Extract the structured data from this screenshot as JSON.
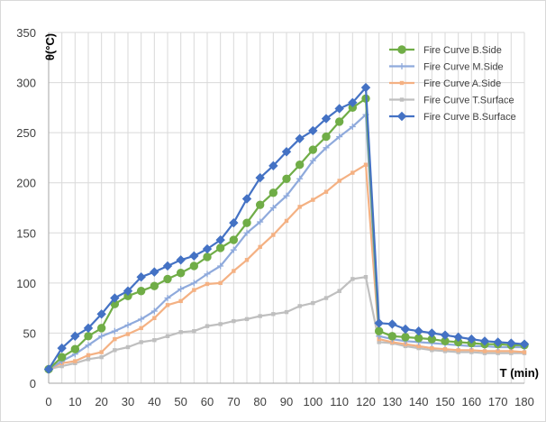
{
  "chart_data": {
    "type": "line",
    "ylabel": "θ(°C)",
    "xlabel": "T (min)",
    "xlim": [
      0,
      180
    ],
    "ylim": [
      0,
      350
    ],
    "x_ticks": [
      "0",
      "10",
      "20",
      "30",
      "40",
      "50",
      "60",
      "70",
      "80",
      "90",
      "100",
      "110",
      "120",
      "130",
      "140",
      "150",
      "160",
      "170",
      "180"
    ],
    "y_ticks": [
      "0",
      "50",
      "100",
      "150",
      "200",
      "250",
      "300",
      "350"
    ],
    "grid": "vertical and horizontal",
    "legend_position": "top-right",
    "series": [
      {
        "name": "Fire Curve B.Side",
        "color": "#70ad47",
        "marker": "circle",
        "points": [
          [
            0,
            14
          ],
          [
            5,
            26
          ],
          [
            10,
            34
          ],
          [
            15,
            47
          ],
          [
            20,
            55
          ],
          [
            25,
            79
          ],
          [
            30,
            87
          ],
          [
            35,
            92
          ],
          [
            40,
            97
          ],
          [
            45,
            104
          ],
          [
            50,
            110
          ],
          [
            55,
            117
          ],
          [
            60,
            126
          ],
          [
            65,
            135
          ],
          [
            70,
            143
          ],
          [
            75,
            160
          ],
          [
            80,
            178
          ],
          [
            85,
            190
          ],
          [
            90,
            204
          ],
          [
            95,
            218
          ],
          [
            100,
            233
          ],
          [
            105,
            246
          ],
          [
            110,
            261
          ],
          [
            115,
            275
          ],
          [
            120,
            284
          ],
          [
            125,
            52
          ],
          [
            130,
            47
          ],
          [
            135,
            46
          ],
          [
            140,
            45
          ],
          [
            145,
            44
          ],
          [
            150,
            42
          ],
          [
            155,
            41
          ],
          [
            160,
            40
          ],
          [
            165,
            39
          ],
          [
            170,
            39
          ],
          [
            175,
            38
          ],
          [
            180,
            38
          ]
        ]
      },
      {
        "name": "Fire Curve M.Side",
        "color": "#8faadc",
        "marker": "plus",
        "points": [
          [
            0,
            14
          ],
          [
            5,
            22
          ],
          [
            10,
            29
          ],
          [
            15,
            38
          ],
          [
            20,
            47
          ],
          [
            25,
            52
          ],
          [
            30,
            58
          ],
          [
            35,
            64
          ],
          [
            40,
            72
          ],
          [
            45,
            85
          ],
          [
            50,
            94
          ],
          [
            55,
            100
          ],
          [
            60,
            109
          ],
          [
            65,
            117
          ],
          [
            70,
            133
          ],
          [
            75,
            150
          ],
          [
            80,
            161
          ],
          [
            85,
            175
          ],
          [
            90,
            187
          ],
          [
            95,
            204
          ],
          [
            100,
            222
          ],
          [
            105,
            235
          ],
          [
            110,
            246
          ],
          [
            115,
            256
          ],
          [
            120,
            268
          ],
          [
            125,
            47
          ],
          [
            130,
            44
          ],
          [
            135,
            42
          ],
          [
            140,
            41
          ],
          [
            145,
            40
          ],
          [
            150,
            39
          ],
          [
            155,
            38
          ],
          [
            160,
            37
          ],
          [
            165,
            37
          ],
          [
            170,
            36
          ],
          [
            175,
            36
          ],
          [
            180,
            36
          ]
        ]
      },
      {
        "name": "Fire Curve A.Side",
        "color": "#f4b183",
        "marker": "square",
        "points": [
          [
            0,
            14
          ],
          [
            5,
            20
          ],
          [
            10,
            22
          ],
          [
            15,
            28
          ],
          [
            20,
            31
          ],
          [
            25,
            44
          ],
          [
            30,
            49
          ],
          [
            35,
            55
          ],
          [
            40,
            65
          ],
          [
            45,
            78
          ],
          [
            50,
            82
          ],
          [
            55,
            93
          ],
          [
            60,
            99
          ],
          [
            65,
            100
          ],
          [
            70,
            112
          ],
          [
            75,
            123
          ],
          [
            80,
            136
          ],
          [
            85,
            148
          ],
          [
            90,
            162
          ],
          [
            95,
            176
          ],
          [
            100,
            183
          ],
          [
            105,
            191
          ],
          [
            110,
            202
          ],
          [
            115,
            210
          ],
          [
            120,
            218
          ],
          [
            125,
            44
          ],
          [
            130,
            41
          ],
          [
            135,
            39
          ],
          [
            140,
            37
          ],
          [
            145,
            35
          ],
          [
            150,
            34
          ],
          [
            155,
            33
          ],
          [
            160,
            33
          ],
          [
            165,
            32
          ],
          [
            170,
            32
          ],
          [
            175,
            32
          ],
          [
            180,
            31
          ]
        ]
      },
      {
        "name": "Fire Curve T.Surface",
        "color": "#bfbfbf",
        "marker": "square",
        "points": [
          [
            0,
            14
          ],
          [
            5,
            17
          ],
          [
            10,
            20
          ],
          [
            15,
            24
          ],
          [
            20,
            26
          ],
          [
            25,
            33
          ],
          [
            30,
            36
          ],
          [
            35,
            41
          ],
          [
            40,
            43
          ],
          [
            45,
            47
          ],
          [
            50,
            51
          ],
          [
            55,
            52
          ],
          [
            60,
            57
          ],
          [
            65,
            59
          ],
          [
            70,
            62
          ],
          [
            75,
            64
          ],
          [
            80,
            67
          ],
          [
            85,
            69
          ],
          [
            90,
            71
          ],
          [
            95,
            77
          ],
          [
            100,
            80
          ],
          [
            105,
            85
          ],
          [
            110,
            92
          ],
          [
            115,
            104
          ],
          [
            120,
            106
          ],
          [
            125,
            41
          ],
          [
            130,
            40
          ],
          [
            135,
            37
          ],
          [
            140,
            35
          ],
          [
            145,
            33
          ],
          [
            150,
            32
          ],
          [
            155,
            31
          ],
          [
            160,
            31
          ],
          [
            165,
            30
          ],
          [
            170,
            30
          ],
          [
            175,
            30
          ],
          [
            180,
            30
          ]
        ]
      },
      {
        "name": "Fire Curve B.Surface",
        "color": "#4472c4",
        "marker": "diamond",
        "points": [
          [
            0,
            14
          ],
          [
            5,
            35
          ],
          [
            10,
            47
          ],
          [
            15,
            55
          ],
          [
            20,
            69
          ],
          [
            25,
            85
          ],
          [
            30,
            92
          ],
          [
            35,
            106
          ],
          [
            40,
            111
          ],
          [
            45,
            117
          ],
          [
            50,
            123
          ],
          [
            55,
            127
          ],
          [
            60,
            134
          ],
          [
            65,
            143
          ],
          [
            70,
            160
          ],
          [
            75,
            184
          ],
          [
            80,
            205
          ],
          [
            85,
            217
          ],
          [
            90,
            231
          ],
          [
            95,
            244
          ],
          [
            100,
            252
          ],
          [
            105,
            264
          ],
          [
            110,
            274
          ],
          [
            115,
            280
          ],
          [
            120,
            295
          ],
          [
            125,
            60
          ],
          [
            130,
            59
          ],
          [
            135,
            54
          ],
          [
            140,
            52
          ],
          [
            145,
            50
          ],
          [
            150,
            48
          ],
          [
            155,
            46
          ],
          [
            160,
            44
          ],
          [
            165,
            42
          ],
          [
            170,
            41
          ],
          [
            175,
            40
          ],
          [
            180,
            39
          ]
        ]
      }
    ]
  }
}
